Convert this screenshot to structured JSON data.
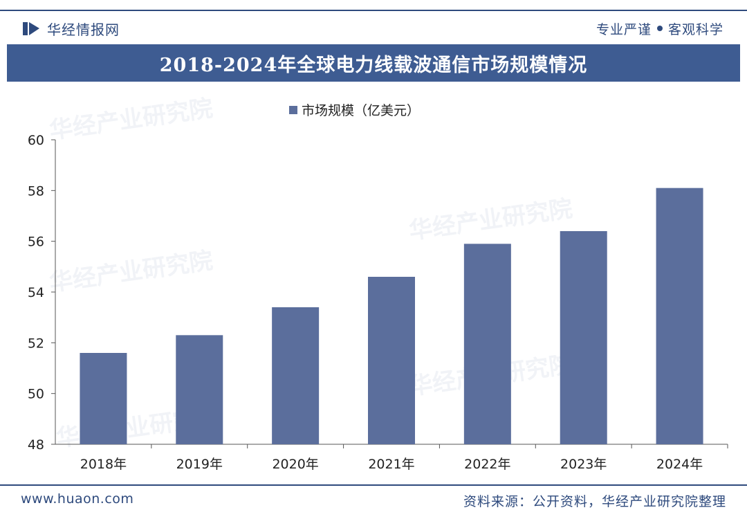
{
  "header": {
    "brand": "华经情报网",
    "slogan_left": "专业严谨",
    "slogan_right": "客观科学"
  },
  "title": "2018-2024年全球电力线载波通信市场规模情况",
  "watermarks": [
    "华经产业研究院",
    "华经产业研究院",
    "华经产业研究院",
    "华经产业研究院",
    "华经产业研究院"
  ],
  "footer": {
    "website": "www.huaon.com",
    "source": "资料来源：公开资料，华经产业研究院整理"
  },
  "colors": {
    "brand": "#2e4a7d",
    "title_bar": "#3e5c92",
    "bar": "#5b6e9c"
  },
  "chart_data": {
    "type": "bar",
    "categories": [
      "2018年",
      "2019年",
      "2020年",
      "2021年",
      "2022年",
      "2023年",
      "2024年"
    ],
    "series": [
      {
        "name": "市场规模（亿美元）",
        "values": [
          51.6,
          52.3,
          53.4,
          54.6,
          55.9,
          56.4,
          58.1
        ]
      }
    ],
    "ylim": [
      48,
      60
    ],
    "yticks": [
      "48",
      "50",
      "52",
      "54",
      "56",
      "58",
      "60"
    ],
    "xlabel": "",
    "ylabel": "",
    "legend_position": "top-center",
    "grid": false
  }
}
